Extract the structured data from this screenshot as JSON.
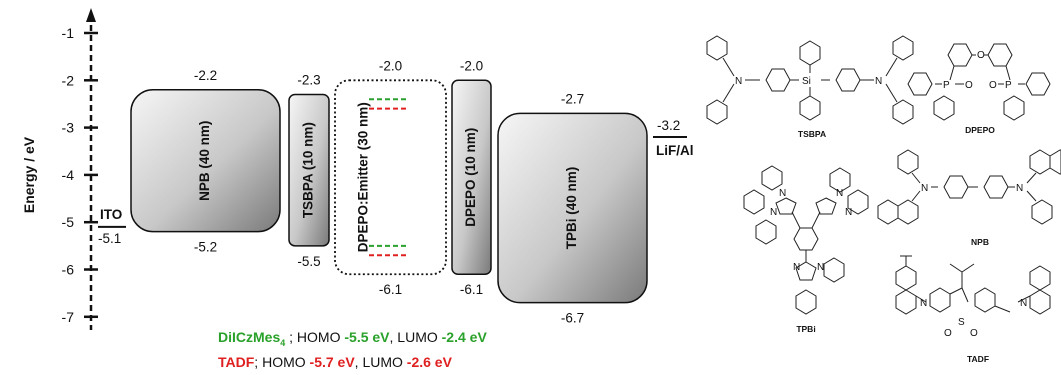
{
  "axis": {
    "label": "Energy / eV",
    "ticks": [
      -1,
      -2,
      -3,
      -4,
      -5,
      -6,
      -7
    ],
    "tick_labels": [
      "-1",
      "-2",
      "-3",
      "-4",
      "-5",
      "-6",
      "-7"
    ]
  },
  "electrodes": [
    {
      "name": "ITO",
      "level": -5.1,
      "level_label": "-5.1"
    },
    {
      "name": "LiF/Al",
      "level": -3.2,
      "level_label": "-3.2"
    }
  ],
  "layers": [
    {
      "id": "npb",
      "name": "NPB (40 nm)",
      "top": -2.2,
      "bottom": -5.2,
      "top_label": "-2.2",
      "bottom_label": "-5.2"
    },
    {
      "id": "tsbpa",
      "name": "TSBPA (10 nm)",
      "top": -2.3,
      "bottom": -5.5,
      "top_label": "-2.3",
      "bottom_label": "-5.5"
    },
    {
      "id": "emitter",
      "name": "DPEPO:Emitter (30 nm)",
      "top": -2.0,
      "bottom": -6.1,
      "top_label": "-2.0",
      "bottom_label": "-6.1"
    },
    {
      "id": "dpepo",
      "name": "DPEPO (10 nm)",
      "top": -2.0,
      "bottom": -6.1,
      "top_label": "-2.0",
      "bottom_label": "-6.1"
    },
    {
      "id": "tpbi",
      "name": "TPBi (40 nm)",
      "top": -2.7,
      "bottom": -6.7,
      "top_label": "-2.7",
      "bottom_label": "-6.7"
    }
  ],
  "emitters": [
    {
      "name": "DiICzMes",
      "subscript": "4",
      "homo": -5.5,
      "lumo": -2.4,
      "color": "#2aa12a",
      "homo_label": "-5.5 eV",
      "lumo_label": "-2.4 eV"
    },
    {
      "name": "TADF",
      "homo": -5.7,
      "lumo": -2.6,
      "color": "#e02020",
      "homo_label": "-5.7 eV",
      "lumo_label": "-2.6 eV"
    }
  ],
  "legend": {
    "sep": ";",
    "homo_word": "HOMO",
    "lumo_word": "LUMO",
    "comma": ","
  },
  "molecules": {
    "tsbpa": {
      "label": "TSBPA",
      "atoms": [
        "N",
        "Si",
        "N"
      ]
    },
    "dpepo": {
      "label": "DPEPO",
      "atoms": [
        "O",
        "P",
        "O",
        "O",
        "P"
      ]
    },
    "npb": {
      "label": "NPB",
      "atoms": [
        "N",
        "N"
      ]
    },
    "tpbi": {
      "label": "TPBi",
      "atoms": [
        "N",
        "N",
        "N",
        "N",
        "N",
        "N"
      ]
    },
    "tadf": {
      "label": "TADF",
      "atoms": [
        "N",
        "S",
        "O",
        "O",
        "N"
      ]
    }
  },
  "colors": {
    "green": "#2aa12a",
    "red": "#e02020",
    "box_fill_light": "#f2f2f2",
    "box_fill_dark": "#8a8a8a"
  }
}
